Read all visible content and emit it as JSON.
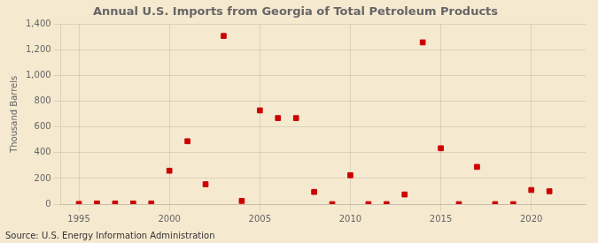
{
  "chart_data": {
    "type": "scatter",
    "title": "Annual U.S. Imports from Georgia of Total Petroleum Products",
    "ylabel": "Thousand Barrels",
    "source": "Source: U.S. Energy Information Administration",
    "x": [
      1995,
      1996,
      1997,
      1998,
      1999,
      2000,
      2001,
      2002,
      2003,
      2004,
      2005,
      2006,
      2007,
      2008,
      2009,
      2010,
      2011,
      2012,
      2013,
      2014,
      2015,
      2016,
      2017,
      2018,
      2019,
      2020,
      2021
    ],
    "values": [
      2,
      5,
      5,
      5,
      5,
      260,
      490,
      155,
      1310,
      25,
      730,
      670,
      670,
      95,
      0,
      225,
      0,
      0,
      75,
      1260,
      435,
      0,
      290,
      0,
      0,
      110,
      100
    ],
    "color": "#cc0000",
    "marker": "square",
    "xlim": [
      1994,
      2023
    ],
    "ylim": [
      0,
      1400
    ],
    "xticks": [
      1995,
      2000,
      2005,
      2010,
      2015,
      2020
    ],
    "yticks": [
      0,
      200,
      400,
      600,
      800,
      {
        "value": 1000,
        "label": "1,000"
      },
      {
        "value": 1200,
        "label": "1,200"
      },
      {
        "value": 1400,
        "label": "1,400"
      }
    ],
    "grid": true
  }
}
